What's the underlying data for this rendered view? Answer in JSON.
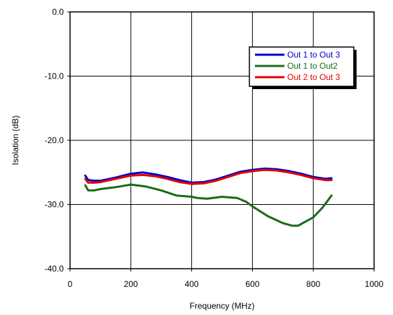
{
  "chart_data": {
    "type": "line",
    "xlabel": "Frequency (MHz)",
    "ylabel": "Isolation (dB)",
    "xlim": [
      0,
      1000
    ],
    "ylim": [
      -40,
      0
    ],
    "x_ticks": [
      0,
      200,
      400,
      600,
      800,
      1000
    ],
    "x_tick_labels": [
      "0",
      "200",
      "400",
      "600",
      "800",
      "1000"
    ],
    "y_ticks": [
      0,
      -10,
      -20,
      -30,
      -40
    ],
    "y_tick_labels": [
      "0.0",
      "-10.0",
      "-20.0",
      "-30.0",
      "-40.0"
    ],
    "grid": true,
    "legend_position": "top-right",
    "series": [
      {
        "name": "Out 1 to Out 3",
        "color": "#0000cc",
        "x": [
          50,
          60,
          80,
          100,
          120,
          150,
          200,
          240,
          280,
          320,
          360,
          400,
          440,
          480,
          520,
          560,
          600,
          640,
          680,
          720,
          760,
          800,
          840,
          860
        ],
        "y": [
          -25.5,
          -26.2,
          -26.3,
          -26.3,
          -26.1,
          -25.8,
          -25.2,
          -25.0,
          -25.3,
          -25.7,
          -26.2,
          -26.6,
          -26.5,
          -26.1,
          -25.5,
          -24.9,
          -24.6,
          -24.4,
          -24.5,
          -24.8,
          -25.2,
          -25.7,
          -26.0,
          -25.9
        ]
      },
      {
        "name": "Out 1 to Out2",
        "color": "#1a6b1a",
        "x": [
          50,
          60,
          80,
          100,
          150,
          200,
          250,
          300,
          350,
          400,
          420,
          450,
          500,
          550,
          580,
          600,
          650,
          700,
          730,
          750,
          800,
          830,
          860
        ],
        "y": [
          -27.0,
          -27.8,
          -27.8,
          -27.6,
          -27.3,
          -26.9,
          -27.2,
          -27.8,
          -28.6,
          -28.8,
          -29.0,
          -29.1,
          -28.8,
          -29.0,
          -29.6,
          -30.3,
          -31.8,
          -32.9,
          -33.3,
          -33.3,
          -32.0,
          -30.5,
          -28.6
        ]
      },
      {
        "name": "Out 2 to Out 3",
        "color": "#e00000",
        "x": [
          50,
          60,
          80,
          100,
          120,
          150,
          200,
          240,
          280,
          320,
          360,
          400,
          440,
          480,
          520,
          560,
          600,
          640,
          680,
          720,
          760,
          800,
          840,
          860
        ],
        "y": [
          -26.0,
          -26.6,
          -26.6,
          -26.5,
          -26.3,
          -26.0,
          -25.5,
          -25.4,
          -25.6,
          -26.0,
          -26.5,
          -26.8,
          -26.7,
          -26.3,
          -25.7,
          -25.1,
          -24.8,
          -24.6,
          -24.7,
          -25.0,
          -25.4,
          -25.9,
          -26.2,
          -26.2
        ]
      }
    ]
  }
}
